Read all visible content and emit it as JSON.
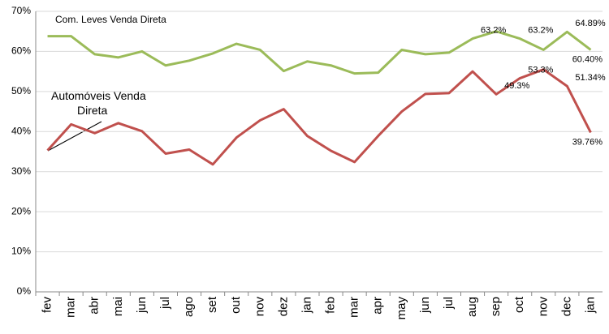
{
  "chart_data": {
    "type": "line",
    "categories": [
      "fev",
      "mar",
      "abr",
      "mai",
      "jun",
      "jul",
      "ago",
      "set",
      "out",
      "nov",
      "dez",
      "jan",
      "feb",
      "mar",
      "apr",
      "may",
      "jun",
      "jul",
      "aug",
      "sep",
      "oct",
      "nov",
      "dec",
      "jan"
    ],
    "series": [
      {
        "name": "Com. Leves Venda Direta",
        "color": "#9bbb59",
        "values": [
          63.8,
          63.8,
          59.3,
          58.5,
          60.0,
          56.5,
          57.7,
          59.5,
          61.9,
          60.4,
          55.1,
          57.5,
          56.5,
          54.5,
          54.7,
          60.4,
          59.3,
          59.7,
          63.2,
          65.0,
          63.2,
          60.4,
          64.89,
          60.4
        ],
        "value_labels": [
          null,
          null,
          null,
          null,
          null,
          null,
          null,
          null,
          null,
          null,
          null,
          null,
          null,
          null,
          null,
          null,
          null,
          null,
          "63.2%",
          null,
          "63.2%",
          null,
          "64.89%",
          "60.40%"
        ]
      },
      {
        "name": "Automóveis Venda Direta",
        "color": "#c0504d",
        "values": [
          35.3,
          41.8,
          39.6,
          42.1,
          40.1,
          34.5,
          35.5,
          31.8,
          38.5,
          42.8,
          45.6,
          38.9,
          35.2,
          32.4,
          38.9,
          45.0,
          49.4,
          49.6,
          55.0,
          49.3,
          53.3,
          55.5,
          51.34,
          39.76
        ],
        "value_labels": [
          null,
          null,
          null,
          null,
          null,
          null,
          null,
          null,
          null,
          null,
          null,
          null,
          null,
          null,
          null,
          null,
          null,
          null,
          null,
          "49.3%",
          "53.3%",
          null,
          "51.34%",
          "39.76%"
        ]
      }
    ],
    "ylim": [
      0,
      70
    ],
    "yticks": [
      {
        "value": 0,
        "label": "0%"
      },
      {
        "value": 10,
        "label": "10%"
      },
      {
        "value": 20,
        "label": "20%"
      },
      {
        "value": 30,
        "label": "30%"
      },
      {
        "value": 40,
        "label": "40%"
      },
      {
        "value": 50,
        "label": "50%"
      },
      {
        "value": 60,
        "label": "60%"
      },
      {
        "value": 70,
        "label": "70%"
      }
    ],
    "grid": true
  }
}
